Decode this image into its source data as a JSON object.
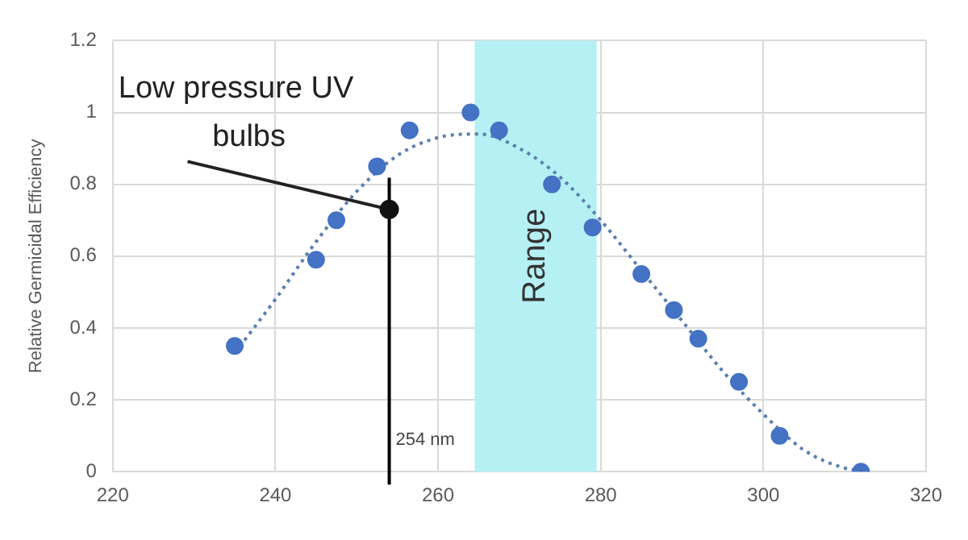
{
  "chart_data": {
    "type": "scatter",
    "ylabel": "Relative Germicidal Efficiency",
    "xlim": [
      220,
      320
    ],
    "xticks": [
      220,
      240,
      260,
      280,
      300,
      320
    ],
    "ylim": [
      0,
      1.2
    ],
    "yticks": [
      0,
      0.2,
      0.4,
      0.6,
      0.8,
      1,
      1.2
    ],
    "grid": true,
    "series": [
      {
        "type": "scatter",
        "color": "#4472c4",
        "marker": "circle",
        "x": [
          235,
          245,
          247.5,
          252.5,
          256.5,
          264,
          267.5,
          274,
          279,
          285,
          289,
          292,
          297,
          302,
          312
        ],
        "values": [
          0.35,
          0.59,
          0.7,
          0.85,
          0.95,
          1,
          0.95,
          0.8,
          0.68,
          0.55,
          0.45,
          0.37,
          0.25,
          0.1,
          0
        ]
      },
      {
        "type": "line",
        "color": "#5b7fae",
        "marker": "none",
        "line_style": "dotted",
        "x": [
          235,
          240,
          245,
          250,
          255,
          260,
          265,
          270,
          275,
          280,
          285,
          290,
          295,
          300,
          305,
          310,
          313
        ],
        "values": [
          0.33,
          0.48,
          0.64,
          0.78,
          0.88,
          0.93,
          0.94,
          0.9,
          0.82,
          0.7,
          0.56,
          0.42,
          0.28,
          0.16,
          0.06,
          0.01,
          0
        ]
      }
    ],
    "bands": [
      {
        "axis": "x",
        "from": 264.5,
        "to": 279.5,
        "label": "Range",
        "color": "#b5f1f4"
      }
    ],
    "ref_lines": [
      {
        "axis": "x",
        "value": 254,
        "label": "254 nm",
        "color": "#000000"
      }
    ],
    "annotations": [
      {
        "text": "Low pressure UV bulbs",
        "x": 254,
        "y": 0.73
      }
    ]
  }
}
